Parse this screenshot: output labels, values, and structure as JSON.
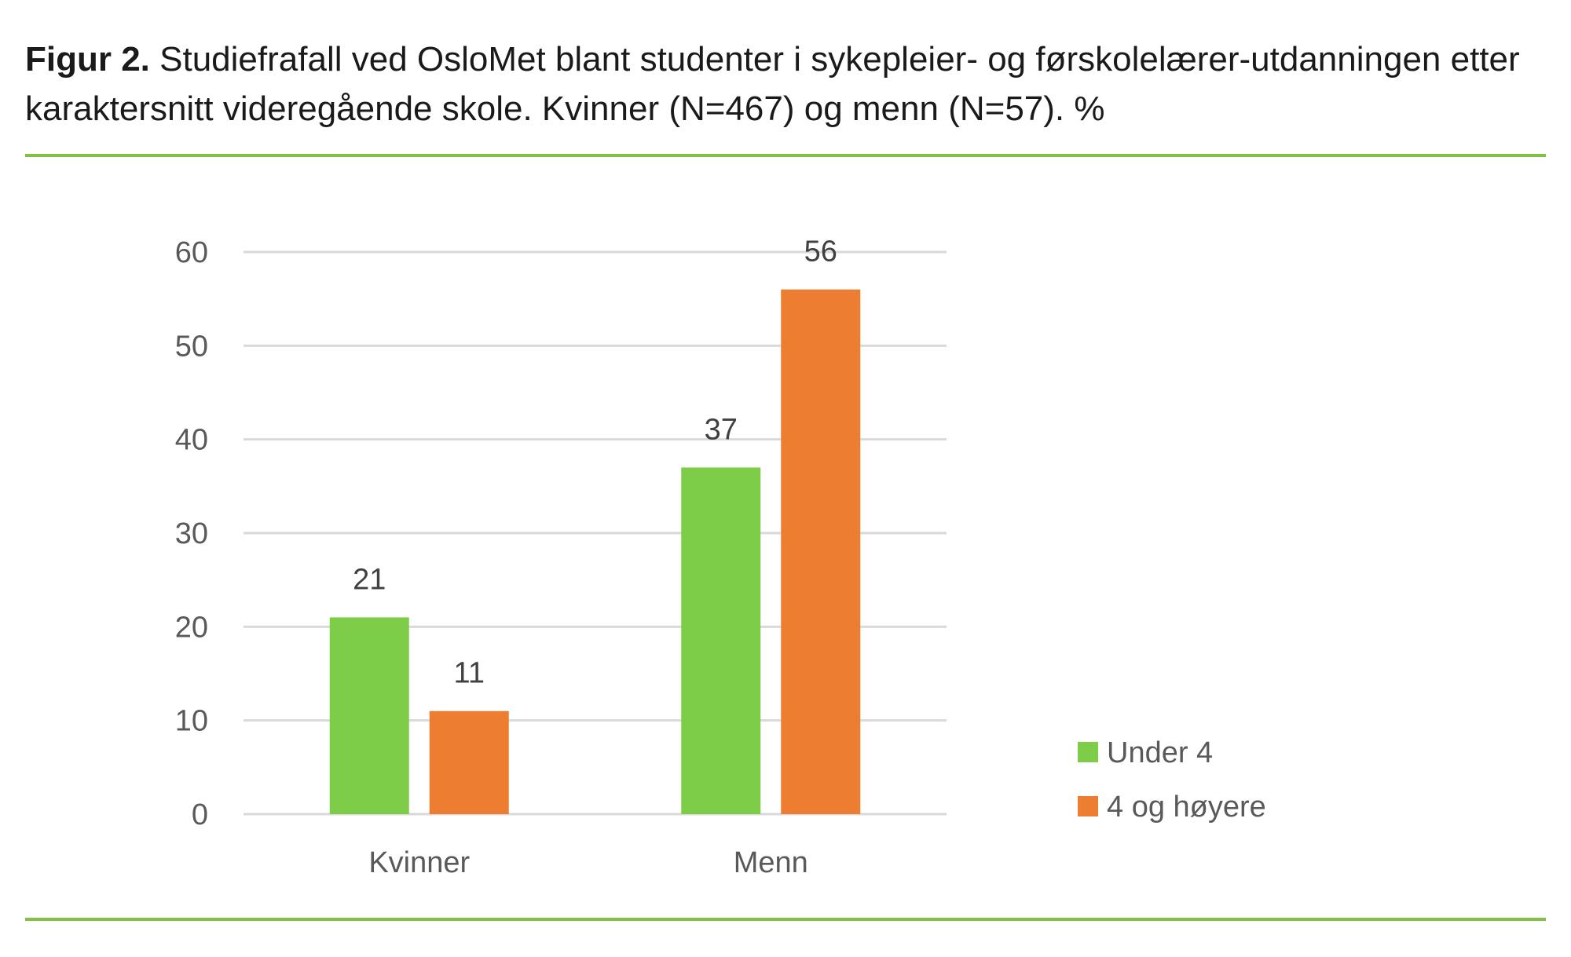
{
  "figure": {
    "label": "Figur 2.",
    "caption": "Studiefrafall ved OsloMet blant studenter i sykepleier- og førskolelærer-utdanningen etter karaktersnitt videregående skole. Kvinner (N=467) og menn (N=57). %"
  },
  "chart_data": {
    "type": "bar",
    "title": "",
    "xlabel": "",
    "ylabel": "",
    "categories": [
      "Kvinner",
      "Menn"
    ],
    "series": [
      {
        "name": "Under 4",
        "values": [
          21,
          37
        ],
        "color": "#7ecd48"
      },
      {
        "name": "4 og høyere",
        "values": [
          11,
          56
        ],
        "color": "#ed7d31"
      }
    ],
    "ylim": [
      0,
      60
    ],
    "yticks": [
      0,
      10,
      20,
      30,
      40,
      50,
      60
    ],
    "grid": true,
    "data_labels": true,
    "legend_position": "right"
  },
  "colors": {
    "rule": "#7dc242",
    "grid": "#d9d9d9",
    "text": "#595959"
  }
}
